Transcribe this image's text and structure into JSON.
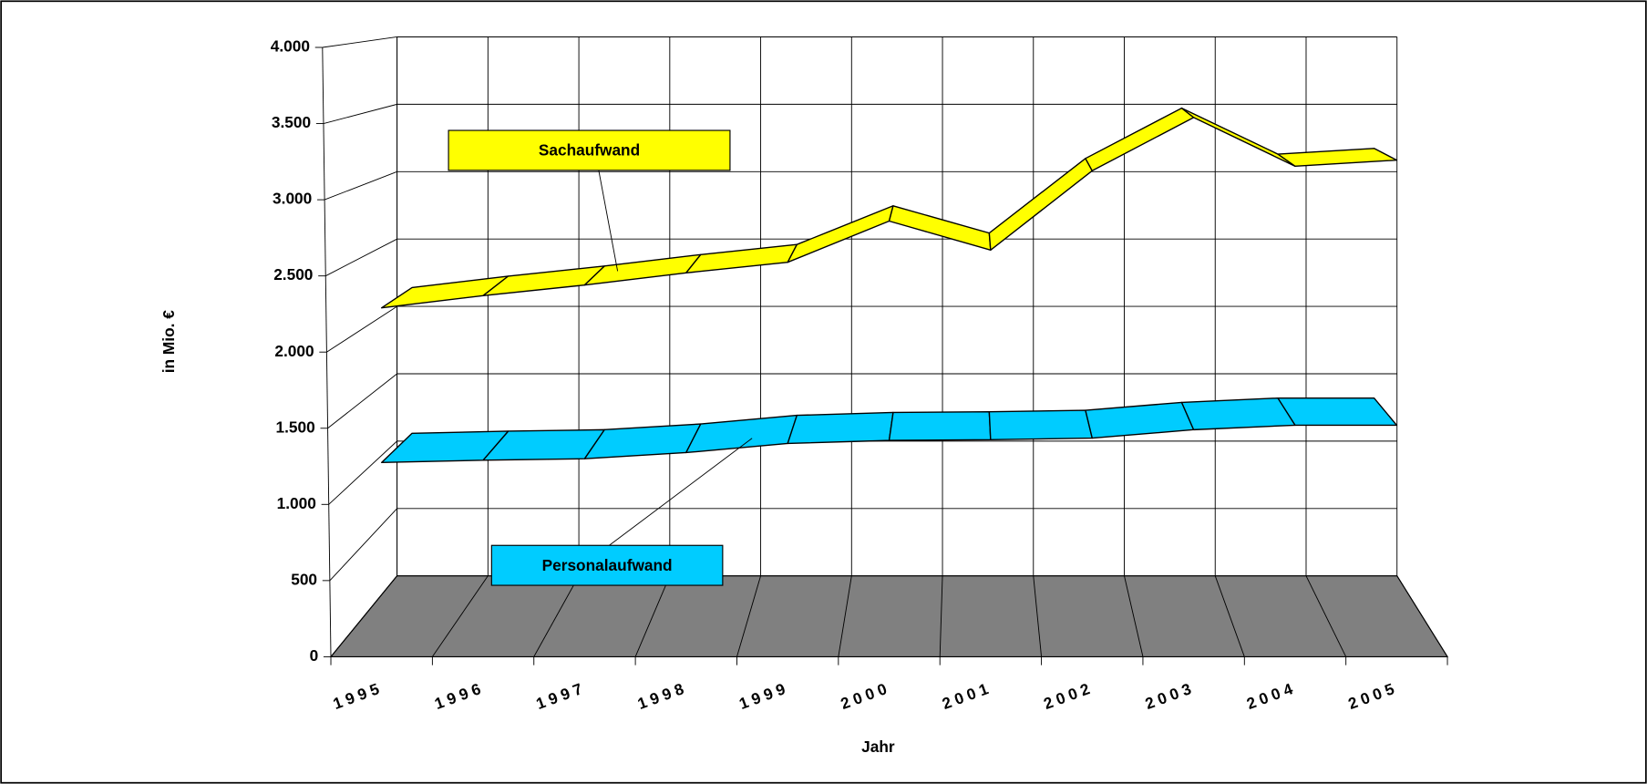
{
  "chart_data": {
    "type": "line3d",
    "x_label": "Jahr",
    "y_label": "in Mio. €",
    "categories": [
      "1995",
      "1996",
      "1997",
      "1998",
      "1999",
      "2000",
      "2001",
      "2002",
      "2003",
      "2004",
      "2005"
    ],
    "series": [
      {
        "name": "Sachaufwand",
        "color": "#ffff00",
        "values": [
          2290,
          2370,
          2440,
          2520,
          2590,
          2860,
          2670,
          3190,
          3540,
          3220,
          3260
        ]
      },
      {
        "name": "Personalaufwand",
        "color": "#00ccff",
        "values": [
          1275,
          1290,
          1300,
          1340,
          1400,
          1420,
          1425,
          1435,
          1490,
          1520,
          1520
        ]
      }
    ],
    "ylim": [
      0,
      4000
    ],
    "yticks": [
      0,
      500,
      {
        "value": 1000,
        "label": "1.000"
      },
      {
        "value": 1500,
        "label": "1.500"
      },
      {
        "value": 2000,
        "label": "2.000"
      },
      {
        "value": 2500,
        "label": "2.500"
      },
      {
        "value": 3000,
        "label": "3.000"
      },
      {
        "value": 3500,
        "label": "3.500"
      },
      {
        "value": 4000,
        "label": "4.000"
      }
    ],
    "grid": true,
    "floor_color": "#808080"
  }
}
